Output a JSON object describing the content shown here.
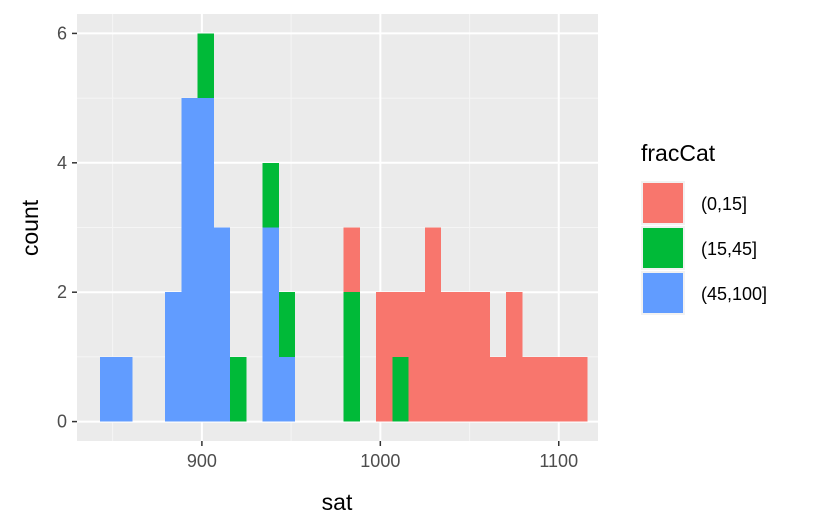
{
  "chart_data": {
    "type": "bar",
    "subtype": "stacked-histogram",
    "title": "",
    "xlabel": "sat",
    "ylabel": "count",
    "xlim": [
      830,
      1122
    ],
    "ylim": [
      -0.3,
      6.3
    ],
    "x_ticks": [
      900,
      1000,
      1100
    ],
    "x_minor_ticks": [
      850,
      950,
      1050
    ],
    "y_ticks": [
      0,
      2,
      4,
      6
    ],
    "y_minor_ticks": [
      1,
      3,
      5
    ],
    "bin_width": 9.1,
    "grid": true,
    "legend": {
      "title": "fracCat",
      "position": "right",
      "entries": [
        {
          "label": "(0,15]",
          "color": "#F8766D"
        },
        {
          "label": "(15,45]",
          "color": "#00BA38"
        },
        {
          "label": "(45,100]",
          "color": "#619CFF"
        }
      ]
    },
    "bins": [
      {
        "x0": 843.0,
        "x1": 852.1,
        "values": [
          0,
          0,
          1
        ]
      },
      {
        "x0": 852.1,
        "x1": 861.2,
        "values": [
          0,
          0,
          1
        ]
      },
      {
        "x0": 879.4,
        "x1": 888.5,
        "values": [
          0,
          0,
          2
        ]
      },
      {
        "x0": 888.5,
        "x1": 897.6,
        "values": [
          0,
          0,
          5
        ]
      },
      {
        "x0": 897.6,
        "x1": 906.7,
        "values": [
          0,
          1,
          5
        ]
      },
      {
        "x0": 906.7,
        "x1": 915.8,
        "values": [
          0,
          0,
          3
        ]
      },
      {
        "x0": 915.8,
        "x1": 924.9,
        "values": [
          0,
          1,
          0
        ]
      },
      {
        "x0": 934.0,
        "x1": 943.1,
        "values": [
          0,
          1,
          3
        ]
      },
      {
        "x0": 943.1,
        "x1": 952.2,
        "values": [
          0,
          1,
          1
        ]
      },
      {
        "x0": 979.5,
        "x1": 988.6,
        "values": [
          1,
          2,
          0
        ]
      },
      {
        "x0": 997.7,
        "x1": 1006.8,
        "values": [
          2,
          0,
          0
        ]
      },
      {
        "x0": 1006.8,
        "x1": 1015.9,
        "values": [
          1,
          1,
          0
        ]
      },
      {
        "x0": 1015.9,
        "x1": 1025.0,
        "values": [
          2,
          0,
          0
        ]
      },
      {
        "x0": 1025.0,
        "x1": 1034.1,
        "values": [
          3,
          0,
          0
        ]
      },
      {
        "x0": 1034.1,
        "x1": 1043.2,
        "values": [
          2,
          0,
          0
        ]
      },
      {
        "x0": 1043.2,
        "x1": 1052.3,
        "values": [
          2,
          0,
          0
        ]
      },
      {
        "x0": 1052.3,
        "x1": 1061.4,
        "values": [
          2,
          0,
          0
        ]
      },
      {
        "x0": 1061.4,
        "x1": 1070.5,
        "values": [
          1,
          0,
          0
        ]
      },
      {
        "x0": 1070.5,
        "x1": 1079.6,
        "values": [
          2,
          0,
          0
        ]
      },
      {
        "x0": 1079.6,
        "x1": 1088.7,
        "values": [
          1,
          0,
          0
        ]
      },
      {
        "x0": 1088.7,
        "x1": 1097.8,
        "values": [
          1,
          0,
          0
        ]
      },
      {
        "x0": 1097.8,
        "x1": 1106.9,
        "values": [
          1,
          0,
          0
        ]
      },
      {
        "x0": 1106.9,
        "x1": 1116.0,
        "values": [
          1,
          0,
          0
        ]
      }
    ],
    "colors": {
      "panel": "#EBEBEB",
      "grid_major": "#FFFFFF",
      "grid_minor": "#F5F5F5",
      "tick": "#333333"
    }
  }
}
